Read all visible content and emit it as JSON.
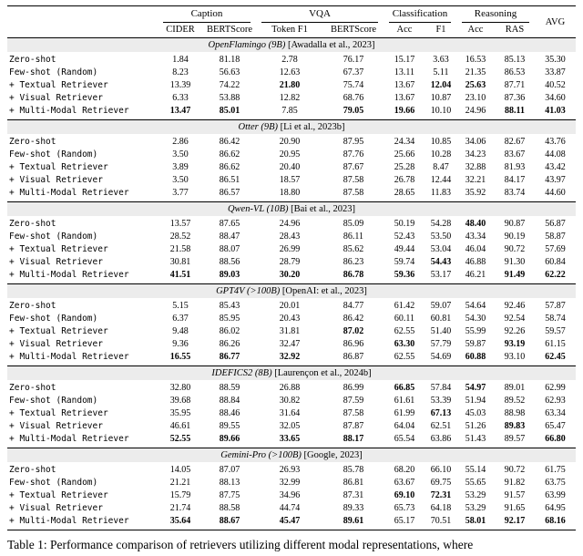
{
  "table": {
    "groups": [
      {
        "label": "Caption"
      },
      {
        "label": "VQA"
      },
      {
        "label": "Classification"
      },
      {
        "label": "Reasoning"
      }
    ],
    "avg_label": "AVG",
    "columns": [
      "CIDER",
      "BERTScore",
      "Token F1",
      "BERTScore",
      "Acc",
      "F1",
      "Acc",
      "RAS"
    ],
    "sections": [
      {
        "model": "OpenFlamingo (9B)",
        "citation": "[Awadalla et al., 2023]",
        "rows": [
          {
            "label": "Zero-shot",
            "values": [
              "1.84",
              "81.18",
              "2.78",
              "76.17",
              "15.17",
              "3.63",
              "16.53",
              "85.13",
              "35.30"
            ],
            "bold": []
          },
          {
            "label": "Few-shot (Random)",
            "values": [
              "8.23",
              "56.63",
              "12.63",
              "67.37",
              "13.11",
              "5.11",
              "21.35",
              "86.53",
              "33.87"
            ],
            "bold": []
          },
          {
            "label": "+ Textual Retriever",
            "values": [
              "13.39",
              "74.22",
              "21.80",
              "75.74",
              "13.67",
              "12.04",
              "25.63",
              "87.71",
              "40.52"
            ],
            "bold": [
              2,
              5,
              6
            ]
          },
          {
            "label": "+ Visual Retriever",
            "values": [
              "6.33",
              "53.88",
              "12.82",
              "68.76",
              "13.67",
              "10.87",
              "23.10",
              "87.36",
              "34.60"
            ],
            "bold": []
          },
          {
            "label": "+ Multi-Modal Retriever",
            "values": [
              "13.47",
              "85.01",
              "7.85",
              "79.05",
              "19.66",
              "10.10",
              "24.96",
              "88.11",
              "41.03"
            ],
            "bold": [
              0,
              1,
              3,
              4,
              7,
              8
            ]
          }
        ]
      },
      {
        "model": "Otter (9B)",
        "citation": "[Li et al., 2023b]",
        "rows": [
          {
            "label": "Zero-shot",
            "values": [
              "2.86",
              "86.42",
              "20.90",
              "87.95",
              "24.34",
              "10.85",
              "34.06",
              "82.67",
              "43.76"
            ],
            "bold": []
          },
          {
            "label": "Few-shot (Random)",
            "values": [
              "3.50",
              "86.62",
              "20.95",
              "87.76",
              "25.66",
              "10.28",
              "34.23",
              "83.67",
              "44.08"
            ],
            "bold": []
          },
          {
            "label": "+ Textual Retriever",
            "values": [
              "3.89",
              "86.62",
              "20.40",
              "87.67",
              "25.28",
              "8.47",
              "32.88",
              "81.93",
              "43.42"
            ],
            "bold": []
          },
          {
            "label": "+ Visual Retriever",
            "values": [
              "3.50",
              "86.51",
              "18.57",
              "87.58",
              "26.78",
              "12.44",
              "32.21",
              "84.17",
              "43.97"
            ],
            "bold": []
          },
          {
            "label": "+ Multi-Modal Retriever",
            "values": [
              "3.77",
              "86.57",
              "18.80",
              "87.58",
              "28.65",
              "11.83",
              "35.92",
              "83.74",
              "44.60"
            ],
            "bold": []
          }
        ]
      },
      {
        "model": "Qwen-VL (10B)",
        "citation": "[Bai et al., 2023]",
        "rows": [
          {
            "label": "Zero-shot",
            "values": [
              "13.57",
              "87.65",
              "24.96",
              "85.09",
              "50.19",
              "54.28",
              "48.40",
              "90.87",
              "56.87"
            ],
            "bold": [
              6
            ]
          },
          {
            "label": "Few-shot (Random)",
            "values": [
              "28.52",
              "88.47",
              "28.43",
              "86.11",
              "52.43",
              "53.50",
              "43.34",
              "90.19",
              "58.87"
            ],
            "bold": []
          },
          {
            "label": "+ Textual Retriever",
            "values": [
              "21.58",
              "88.07",
              "26.99",
              "85.62",
              "49.44",
              "53.04",
              "46.04",
              "90.72",
              "57.69"
            ],
            "bold": []
          },
          {
            "label": "+ Visual Retriever",
            "values": [
              "30.81",
              "88.56",
              "28.79",
              "86.23",
              "59.74",
              "54.43",
              "46.88",
              "91.30",
              "60.84"
            ],
            "bold": [
              5
            ]
          },
          {
            "label": "+ Multi-Modal Retriever",
            "values": [
              "41.51",
              "89.03",
              "30.20",
              "86.78",
              "59.36",
              "53.17",
              "46.21",
              "91.49",
              "62.22"
            ],
            "bold": [
              0,
              1,
              2,
              3,
              4,
              7,
              8
            ]
          }
        ]
      },
      {
        "model": "GPT4V (>100B)",
        "citation": "[OpenAI: et al., 2023]",
        "rows": [
          {
            "label": "Zero-shot",
            "values": [
              "5.15",
              "85.43",
              "20.01",
              "84.77",
              "61.42",
              "59.07",
              "54.64",
              "92.46",
              "57.87"
            ],
            "bold": []
          },
          {
            "label": "Few-shot (Random)",
            "values": [
              "6.37",
              "85.95",
              "20.43",
              "86.42",
              "60.11",
              "60.81",
              "54.30",
              "92.54",
              "58.74"
            ],
            "bold": []
          },
          {
            "label": "+ Textual Retriever",
            "values": [
              "9.48",
              "86.02",
              "31.81",
              "87.02",
              "62.55",
              "51.40",
              "55.99",
              "92.26",
              "59.57"
            ],
            "bold": [
              3
            ]
          },
          {
            "label": "+ Visual Retriever",
            "values": [
              "9.36",
              "86.26",
              "32.47",
              "86.96",
              "63.30",
              "57.79",
              "59.87",
              "93.19",
              "61.15"
            ],
            "bold": [
              4,
              7
            ]
          },
          {
            "label": "+ Multi-Modal Retriever",
            "values": [
              "16.55",
              "86.77",
              "32.92",
              "86.87",
              "62.55",
              "54.69",
              "60.88",
              "93.10",
              "62.45"
            ],
            "bold": [
              0,
              1,
              2,
              6,
              8
            ]
          }
        ]
      },
      {
        "model": "IDEFICS2 (8B)",
        "citation": "[Laurençon et al., 2024b]",
        "rows": [
          {
            "label": "Zero-shot",
            "values": [
              "32.80",
              "88.59",
              "26.88",
              "86.99",
              "66.85",
              "57.84",
              "54.97",
              "89.01",
              "62.99"
            ],
            "bold": [
              4,
              6
            ]
          },
          {
            "label": "Few-shot (Random)",
            "values": [
              "39.68",
              "88.84",
              "30.82",
              "87.59",
              "61.61",
              "53.39",
              "51.94",
              "89.52",
              "62.93"
            ],
            "bold": []
          },
          {
            "label": "+ Textual Retriever",
            "values": [
              "35.95",
              "88.46",
              "31.64",
              "87.58",
              "61.99",
              "67.13",
              "45.03",
              "88.98",
              "63.34"
            ],
            "bold": [
              5
            ]
          },
          {
            "label": "+ Visual Retriever",
            "values": [
              "46.61",
              "89.55",
              "32.05",
              "87.87",
              "64.04",
              "62.51",
              "51.26",
              "89.83",
              "65.47"
            ],
            "bold": [
              7
            ]
          },
          {
            "label": "+ Multi-Modal Retriever",
            "values": [
              "52.55",
              "89.66",
              "33.65",
              "88.17",
              "65.54",
              "63.86",
              "51.43",
              "89.57",
              "66.80"
            ],
            "bold": [
              0,
              1,
              2,
              3,
              8
            ]
          }
        ]
      },
      {
        "model": "Gemini-Pro (>100B)",
        "citation": "[Google, 2023]",
        "rows": [
          {
            "label": "Zero-shot",
            "values": [
              "14.05",
              "87.07",
              "26.93",
              "85.78",
              "68.20",
              "66.10",
              "55.14",
              "90.72",
              "61.75"
            ],
            "bold": []
          },
          {
            "label": "Few-shot (Random)",
            "values": [
              "21.21",
              "88.13",
              "32.99",
              "86.81",
              "63.67",
              "69.75",
              "55.65",
              "91.82",
              "63.75"
            ],
            "bold": []
          },
          {
            "label": "+ Textual Retriever",
            "values": [
              "15.79",
              "87.75",
              "34.96",
              "87.31",
              "69.10",
              "72.31",
              "53.29",
              "91.57",
              "63.99"
            ],
            "bold": [
              4,
              5
            ]
          },
          {
            "label": "+ Visual Retriever",
            "values": [
              "21.74",
              "88.58",
              "44.74",
              "89.33",
              "65.73",
              "64.18",
              "53.29",
              "91.65",
              "64.95"
            ],
            "bold": []
          },
          {
            "label": "+ Multi-Modal Retriever",
            "values": [
              "35.64",
              "88.67",
              "45.47",
              "89.61",
              "65.17",
              "70.51",
              "58.01",
              "92.17",
              "68.16"
            ],
            "bold": [
              0,
              1,
              2,
              3,
              6,
              7,
              8
            ]
          }
        ]
      }
    ]
  },
  "caption": "Table 1: Performance comparison of retrievers utilizing different modal representations, where"
}
